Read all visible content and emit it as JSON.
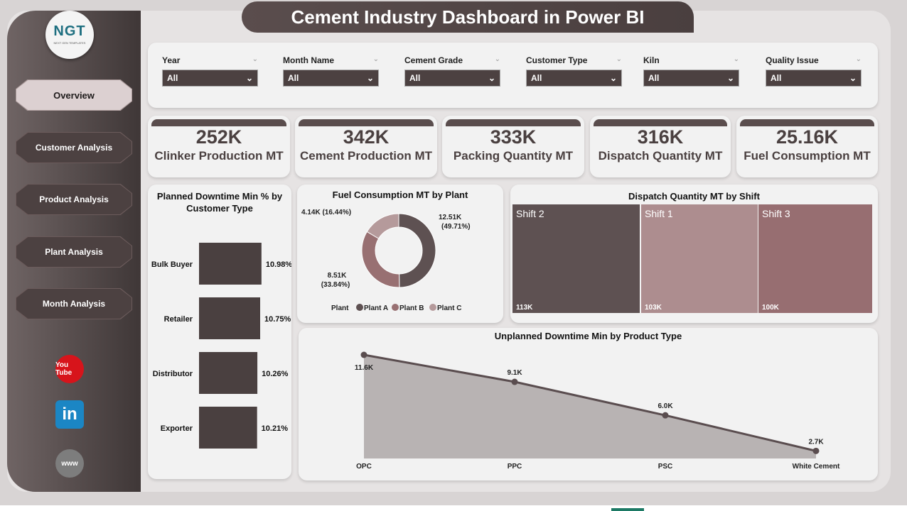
{
  "title": "Cement Industry Dashboard in Power BI",
  "logo": {
    "text": "NGT",
    "subtitle": "NEXT GEN TEMPLATES"
  },
  "nav": [
    {
      "label": "Overview",
      "active": true
    },
    {
      "label": "Customer Analysis"
    },
    {
      "label": "Product Analysis"
    },
    {
      "label": "Plant Analysis"
    },
    {
      "label": "Month Analysis"
    }
  ],
  "social": [
    {
      "icon": "youtube-icon",
      "label": "You Tube",
      "color": "#d7141b"
    },
    {
      "icon": "linkedin-icon",
      "label": "in",
      "color": "#1b86c4"
    },
    {
      "icon": "globe-icon",
      "label": "www",
      "color": "#7d7d7d"
    }
  ],
  "filters": [
    {
      "label": "Year",
      "value": "All"
    },
    {
      "label": "Month Name",
      "value": "All"
    },
    {
      "label": "Cement Grade",
      "value": "All"
    },
    {
      "label": "Customer Type",
      "value": "All"
    },
    {
      "label": "Kiln",
      "value": "All"
    },
    {
      "label": "Quality Issue",
      "value": "All"
    }
  ],
  "kpis": [
    {
      "value": "252K",
      "label": "Clinker Production MT"
    },
    {
      "value": "342K",
      "label": "Cement Production MT"
    },
    {
      "value": "333K",
      "label": "Packing Quantity MT"
    },
    {
      "value": "316K",
      "label": "Dispatch Quantity MT"
    },
    {
      "value": "25.16K",
      "label": "Fuel Consumption MT"
    }
  ],
  "colors": {
    "dark": "#4a4040",
    "plantA": "#5e5152",
    "plantB": "#987072",
    "plantC": "#b59a9b",
    "shift1": "#ad8d8f",
    "shift3": "#976e71",
    "area": "#b8b3b3"
  },
  "chart_data": [
    {
      "type": "bar",
      "title": "Planned Downtime Min % by Customer Type",
      "categories": [
        "Bulk Buyer",
        "Retailer",
        "Distributor",
        "Exporter"
      ],
      "values": [
        10.98,
        10.75,
        10.26,
        10.21
      ],
      "labels": [
        "10.98%",
        "10.75%",
        "10.26%",
        "10.21%"
      ],
      "orientation": "horizontal",
      "xlim": [
        0,
        11
      ]
    },
    {
      "type": "pie",
      "title": "Fuel Consumption MT by Plant",
      "donut": true,
      "legend_title": "Plant",
      "categories": [
        "Plant A",
        "Plant B",
        "Plant C"
      ],
      "values": [
        12.51,
        8.51,
        4.14
      ],
      "labels": [
        "12.51K (49.71%)",
        "8.51K (33.84%)",
        "4.14K (16.44%)"
      ],
      "legend": "bottom"
    },
    {
      "type": "treemap",
      "title": "Dispatch Quantity MT by Shift",
      "categories": [
        "Shift 2",
        "Shift 1",
        "Shift 3"
      ],
      "values": [
        113,
        103,
        100
      ],
      "labels": [
        "113K",
        "103K",
        "100K"
      ]
    },
    {
      "type": "area",
      "title": "Unplanned Downtime Min by Product Type",
      "categories": [
        "OPC",
        "PPC",
        "PSC",
        "White Cement"
      ],
      "values": [
        11600,
        9100,
        6000,
        2700
      ],
      "labels": [
        "11.6K",
        "9.1K",
        "6.0K",
        "2.7K"
      ],
      "ylim": [
        2000,
        11600
      ],
      "grid": false
    }
  ]
}
